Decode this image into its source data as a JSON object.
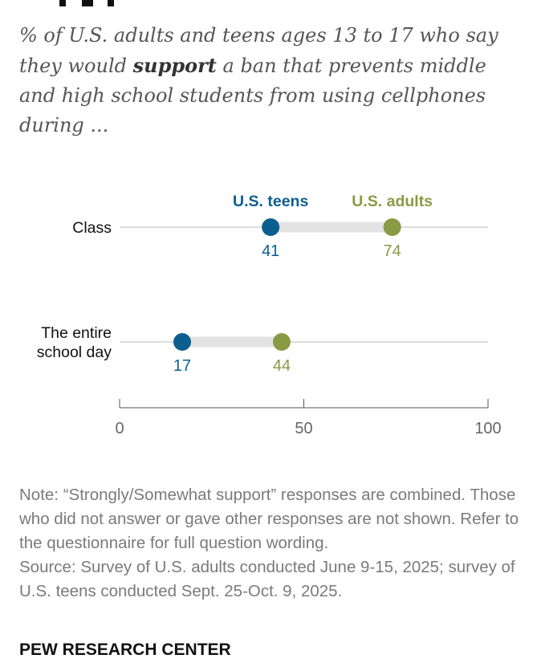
{
  "chart_data": {
    "type": "dot",
    "title": "",
    "subtitle_pre": "% of U.S. adults and teens ages 13 to 17 who say they would ",
    "subtitle_bold": "support",
    "subtitle_post": " a ban that prevents middle and high school students from using cellphones during ...",
    "categories": [
      "Class",
      "The entire school day"
    ],
    "category_lines": [
      [
        "Class"
      ],
      [
        "The entire",
        "school day"
      ]
    ],
    "series": [
      {
        "name": "U.S. teens",
        "values": [
          41,
          17
        ],
        "color": "#0b5f8f"
      },
      {
        "name": "U.S. adults",
        "values": [
          74,
          44
        ],
        "color": "#8a9a45"
      }
    ],
    "xlim": [
      0,
      100
    ],
    "ticks": [
      0,
      50,
      100
    ],
    "xlabel": "",
    "ylabel": "",
    "grid": false
  },
  "note": "Note: “Strongly/Somewhat support” responses are combined. Those who did not answer or gave other responses are not shown. Refer to the questionnaire for full question wording.",
  "source": "Source: Survey of U.S. adults conducted June 9-15, 2025; survey of U.S. teens conducted Sept. 25-Oct. 9, 2025.",
  "brand": "PEW RESEARCH CENTER"
}
